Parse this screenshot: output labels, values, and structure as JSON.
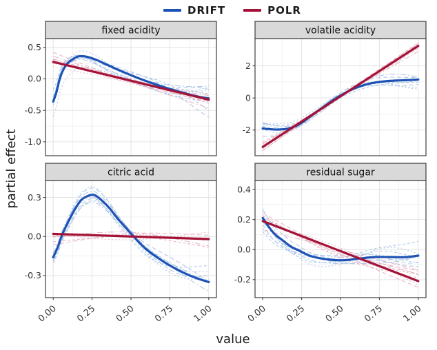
{
  "chart_data": {
    "type": "line",
    "title": "",
    "xlabel": "value",
    "ylabel": "partial effect",
    "legend_position": "top",
    "grid": true,
    "legend": [
      {
        "name": "DRIFT",
        "color": "#1d52b5",
        "light_color": "#9dbce4"
      },
      {
        "name": "POLR",
        "color": "#a41237",
        "light_color": "#e2a9ba"
      }
    ],
    "x_ticks": [
      0,
      0.25,
      0.5,
      0.75,
      1
    ],
    "x_tick_labels": [
      "0.00",
      "0.25",
      "0.50",
      "0.75",
      "1.00"
    ],
    "xlim": [
      0,
      1
    ],
    "facets": [
      {
        "title": "fixed acidity",
        "ylim": [
          -1.22,
          0.64
        ],
        "yticks": [
          0.5,
          0.0,
          -0.5,
          -1.0
        ],
        "ytick_labels": [
          "0.5",
          "0.0",
          "-0.5",
          "-1.0"
        ],
        "series": {
          "DRIFT": [
            [
              0,
              -0.36
            ],
            [
              0.02,
              -0.22
            ],
            [
              0.04,
              -0.02
            ],
            [
              0.06,
              0.12
            ],
            [
              0.09,
              0.24
            ],
            [
              0.13,
              0.32
            ],
            [
              0.17,
              0.36
            ],
            [
              0.22,
              0.35
            ],
            [
              0.28,
              0.3
            ],
            [
              0.35,
              0.22
            ],
            [
              0.45,
              0.11
            ],
            [
              0.55,
              0.01
            ],
            [
              0.65,
              -0.08
            ],
            [
              0.75,
              -0.16
            ],
            [
              0.85,
              -0.23
            ],
            [
              0.93,
              -0.28
            ],
            [
              1,
              -0.31
            ]
          ],
          "POLR": [
            [
              0,
              0.27
            ],
            [
              0.5,
              -0.03
            ],
            [
              1,
              -0.33
            ]
          ]
        },
        "replicate_spread": {
          "DRIFT": 0.28,
          "POLR": 0.12
        }
      },
      {
        "title": "volatile acidity",
        "ylim": [
          -3.6,
          3.7
        ],
        "yticks": [
          2,
          0,
          -2
        ],
        "ytick_labels": [
          "2",
          "0",
          "-2"
        ],
        "series": {
          "DRIFT": [
            [
              0,
              -1.9
            ],
            [
              0.05,
              -1.95
            ],
            [
              0.1,
              -1.97
            ],
            [
              0.15,
              -1.93
            ],
            [
              0.2,
              -1.8
            ],
            [
              0.25,
              -1.55
            ],
            [
              0.3,
              -1.2
            ],
            [
              0.35,
              -0.85
            ],
            [
              0.4,
              -0.5
            ],
            [
              0.45,
              -0.15
            ],
            [
              0.5,
              0.15
            ],
            [
              0.55,
              0.42
            ],
            [
              0.6,
              0.63
            ],
            [
              0.65,
              0.8
            ],
            [
              0.7,
              0.92
            ],
            [
              0.75,
              1.0
            ],
            [
              0.8,
              1.05
            ],
            [
              0.85,
              1.08
            ],
            [
              0.9,
              1.1
            ],
            [
              0.95,
              1.12
            ],
            [
              1,
              1.15
            ]
          ],
          "POLR": [
            [
              0,
              -3.05
            ],
            [
              0.5,
              0.1
            ],
            [
              1,
              3.25
            ]
          ]
        },
        "replicate_spread": {
          "DRIFT": 0.5,
          "POLR": 0.3
        }
      },
      {
        "title": "citric acid",
        "ylim": [
          -0.47,
          0.43
        ],
        "yticks": [
          0.3,
          0.0,
          -0.3
        ],
        "ytick_labels": [
          "0.3",
          "0.0",
          "-0.3"
        ],
        "series": {
          "DRIFT": [
            [
              0,
              -0.16
            ],
            [
              0.03,
              -0.08
            ],
            [
              0.06,
              0.02
            ],
            [
              0.1,
              0.12
            ],
            [
              0.14,
              0.21
            ],
            [
              0.18,
              0.28
            ],
            [
              0.22,
              0.31
            ],
            [
              0.26,
              0.32
            ],
            [
              0.3,
              0.29
            ],
            [
              0.36,
              0.22
            ],
            [
              0.42,
              0.13
            ],
            [
              0.48,
              0.05
            ],
            [
              0.54,
              -0.03
            ],
            [
              0.6,
              -0.1
            ],
            [
              0.68,
              -0.17
            ],
            [
              0.76,
              -0.23
            ],
            [
              0.84,
              -0.28
            ],
            [
              0.92,
              -0.32
            ],
            [
              1,
              -0.35
            ]
          ],
          "POLR": [
            [
              0,
              0.02
            ],
            [
              0.5,
              0.0
            ],
            [
              1,
              -0.02
            ]
          ]
        },
        "replicate_spread": {
          "DRIFT": 0.12,
          "POLR": 0.09
        }
      },
      {
        "title": "residual sugar",
        "ylim": [
          -0.32,
          0.46
        ],
        "yticks": [
          0.4,
          0.2,
          0.0,
          -0.2
        ],
        "ytick_labels": [
          "0.4",
          "0.2",
          "0.0",
          "-0.2"
        ],
        "series": {
          "DRIFT": [
            [
              0,
              0.21
            ],
            [
              0.04,
              0.15
            ],
            [
              0.08,
              0.1
            ],
            [
              0.13,
              0.06
            ],
            [
              0.18,
              0.02
            ],
            [
              0.24,
              -0.01
            ],
            [
              0.3,
              -0.04
            ],
            [
              0.38,
              -0.06
            ],
            [
              0.46,
              -0.07
            ],
            [
              0.54,
              -0.07
            ],
            [
              0.62,
              -0.06
            ],
            [
              0.72,
              -0.05
            ],
            [
              0.82,
              -0.05
            ],
            [
              0.92,
              -0.05
            ],
            [
              1,
              -0.04
            ]
          ],
          "POLR": [
            [
              0,
              0.19
            ],
            [
              0.5,
              -0.01
            ],
            [
              1,
              -0.21
            ]
          ]
        },
        "replicate_spread": {
          "DRIFT": 0.12,
          "POLR": 0.11
        }
      }
    ],
    "style": {
      "grid_major": "#e3e3e3",
      "grid_minor": "#f1f1f1",
      "panel_border": "#3c3c3c",
      "strip_bg": "#d9d9d9",
      "strip_border": "#3c3c3c",
      "tick_text": "#333333",
      "replicates_per_series": 8
    }
  }
}
